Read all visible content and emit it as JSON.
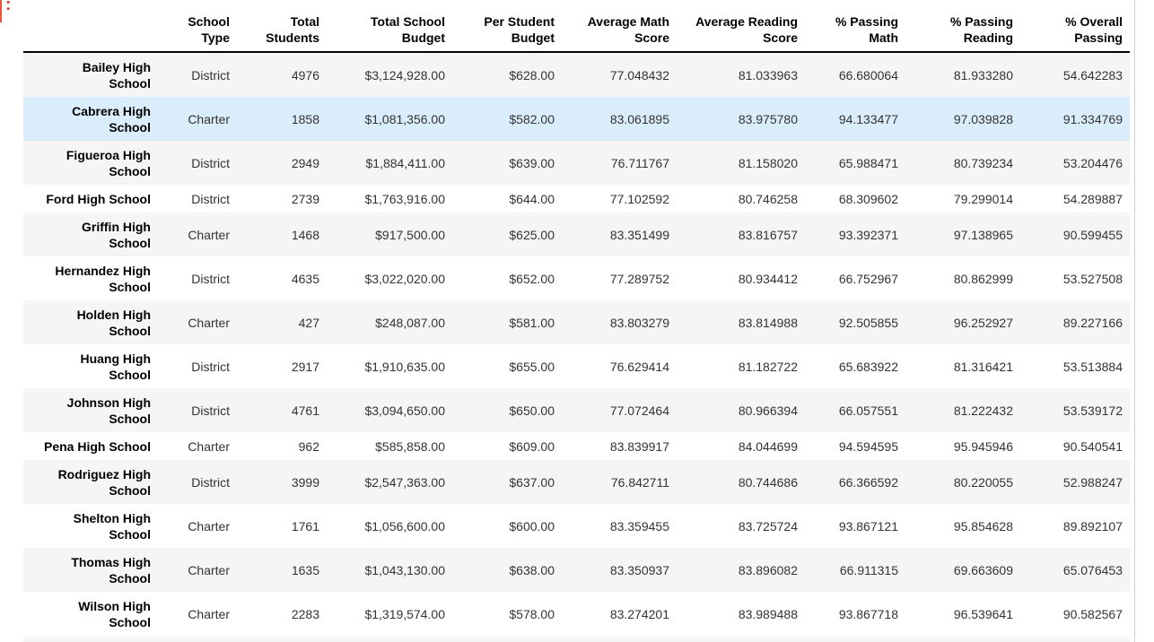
{
  "notebook": {
    "output_prompt_fragment": ":"
  },
  "colors": {
    "stripe": "#f5f5f5",
    "row_highlight": "#d9edfb",
    "header_border": "#000000",
    "prompt_accent": "#e8533a",
    "prompt_colon": "#cc392b",
    "scroll_line": "#cfcfcf"
  },
  "table": {
    "columns": [
      {
        "key": "name",
        "label": ""
      },
      {
        "key": "type",
        "label": "School Type"
      },
      {
        "key": "students",
        "label": "Total Students"
      },
      {
        "key": "budget",
        "label": "Total School Budget"
      },
      {
        "key": "per_student",
        "label": "Per Student Budget"
      },
      {
        "key": "avg_math",
        "label": "Average Math Score"
      },
      {
        "key": "avg_reading",
        "label": "Average Reading Score"
      },
      {
        "key": "pct_math",
        "label": "% Passing Math"
      },
      {
        "key": "pct_reading",
        "label": "% Passing Reading"
      },
      {
        "key": "pct_overall",
        "label": "% Overall Passing"
      }
    ],
    "rows": [
      {
        "name": "Bailey High School",
        "type": "District",
        "students": "4976",
        "budget": "$3,124,928.00",
        "per_student": "$628.00",
        "avg_math": "77.048432",
        "avg_reading": "81.033963",
        "pct_math": "66.680064",
        "pct_reading": "81.933280",
        "pct_overall": "54.642283",
        "highlighted": false
      },
      {
        "name": "Cabrera High School",
        "type": "Charter",
        "students": "1858",
        "budget": "$1,081,356.00",
        "per_student": "$582.00",
        "avg_math": "83.061895",
        "avg_reading": "83.975780",
        "pct_math": "94.133477",
        "pct_reading": "97.039828",
        "pct_overall": "91.334769",
        "highlighted": true
      },
      {
        "name": "Figueroa High School",
        "type": "District",
        "students": "2949",
        "budget": "$1,884,411.00",
        "per_student": "$639.00",
        "avg_math": "76.711767",
        "avg_reading": "81.158020",
        "pct_math": "65.988471",
        "pct_reading": "80.739234",
        "pct_overall": "53.204476",
        "highlighted": false
      },
      {
        "name": "Ford High School",
        "type": "District",
        "students": "2739",
        "budget": "$1,763,916.00",
        "per_student": "$644.00",
        "avg_math": "77.102592",
        "avg_reading": "80.746258",
        "pct_math": "68.309602",
        "pct_reading": "79.299014",
        "pct_overall": "54.289887",
        "highlighted": false
      },
      {
        "name": "Griffin High School",
        "type": "Charter",
        "students": "1468",
        "budget": "$917,500.00",
        "per_student": "$625.00",
        "avg_math": "83.351499",
        "avg_reading": "83.816757",
        "pct_math": "93.392371",
        "pct_reading": "97.138965",
        "pct_overall": "90.599455",
        "highlighted": false
      },
      {
        "name": "Hernandez High School",
        "type": "District",
        "students": "4635",
        "budget": "$3,022,020.00",
        "per_student": "$652.00",
        "avg_math": "77.289752",
        "avg_reading": "80.934412",
        "pct_math": "66.752967",
        "pct_reading": "80.862999",
        "pct_overall": "53.527508",
        "highlighted": false
      },
      {
        "name": "Holden High School",
        "type": "Charter",
        "students": "427",
        "budget": "$248,087.00",
        "per_student": "$581.00",
        "avg_math": "83.803279",
        "avg_reading": "83.814988",
        "pct_math": "92.505855",
        "pct_reading": "96.252927",
        "pct_overall": "89.227166",
        "highlighted": false
      },
      {
        "name": "Huang High School",
        "type": "District",
        "students": "2917",
        "budget": "$1,910,635.00",
        "per_student": "$655.00",
        "avg_math": "76.629414",
        "avg_reading": "81.182722",
        "pct_math": "65.683922",
        "pct_reading": "81.316421",
        "pct_overall": "53.513884",
        "highlighted": false
      },
      {
        "name": "Johnson High School",
        "type": "District",
        "students": "4761",
        "budget": "$3,094,650.00",
        "per_student": "$650.00",
        "avg_math": "77.072464",
        "avg_reading": "80.966394",
        "pct_math": "66.057551",
        "pct_reading": "81.222432",
        "pct_overall": "53.539172",
        "highlighted": false
      },
      {
        "name": "Pena High School",
        "type": "Charter",
        "students": "962",
        "budget": "$585,858.00",
        "per_student": "$609.00",
        "avg_math": "83.839917",
        "avg_reading": "84.044699",
        "pct_math": "94.594595",
        "pct_reading": "95.945946",
        "pct_overall": "90.540541",
        "highlighted": false
      },
      {
        "name": "Rodriguez High School",
        "type": "District",
        "students": "3999",
        "budget": "$2,547,363.00",
        "per_student": "$637.00",
        "avg_math": "76.842711",
        "avg_reading": "80.744686",
        "pct_math": "66.366592",
        "pct_reading": "80.220055",
        "pct_overall": "52.988247",
        "highlighted": false
      },
      {
        "name": "Shelton High School",
        "type": "Charter",
        "students": "1761",
        "budget": "$1,056,600.00",
        "per_student": "$600.00",
        "avg_math": "83.359455",
        "avg_reading": "83.725724",
        "pct_math": "93.867121",
        "pct_reading": "95.854628",
        "pct_overall": "89.892107",
        "highlighted": false
      },
      {
        "name": "Thomas High School",
        "type": "Charter",
        "students": "1635",
        "budget": "$1,043,130.00",
        "per_student": "$638.00",
        "avg_math": "83.350937",
        "avg_reading": "83.896082",
        "pct_math": "66.911315",
        "pct_reading": "69.663609",
        "pct_overall": "65.076453",
        "highlighted": false
      },
      {
        "name": "Wilson High School",
        "type": "Charter",
        "students": "2283",
        "budget": "$1,319,574.00",
        "per_student": "$578.00",
        "avg_math": "83.274201",
        "avg_reading": "83.989488",
        "pct_math": "93.867718",
        "pct_reading": "96.539641",
        "pct_overall": "90.582567",
        "highlighted": false
      }
    ]
  }
}
